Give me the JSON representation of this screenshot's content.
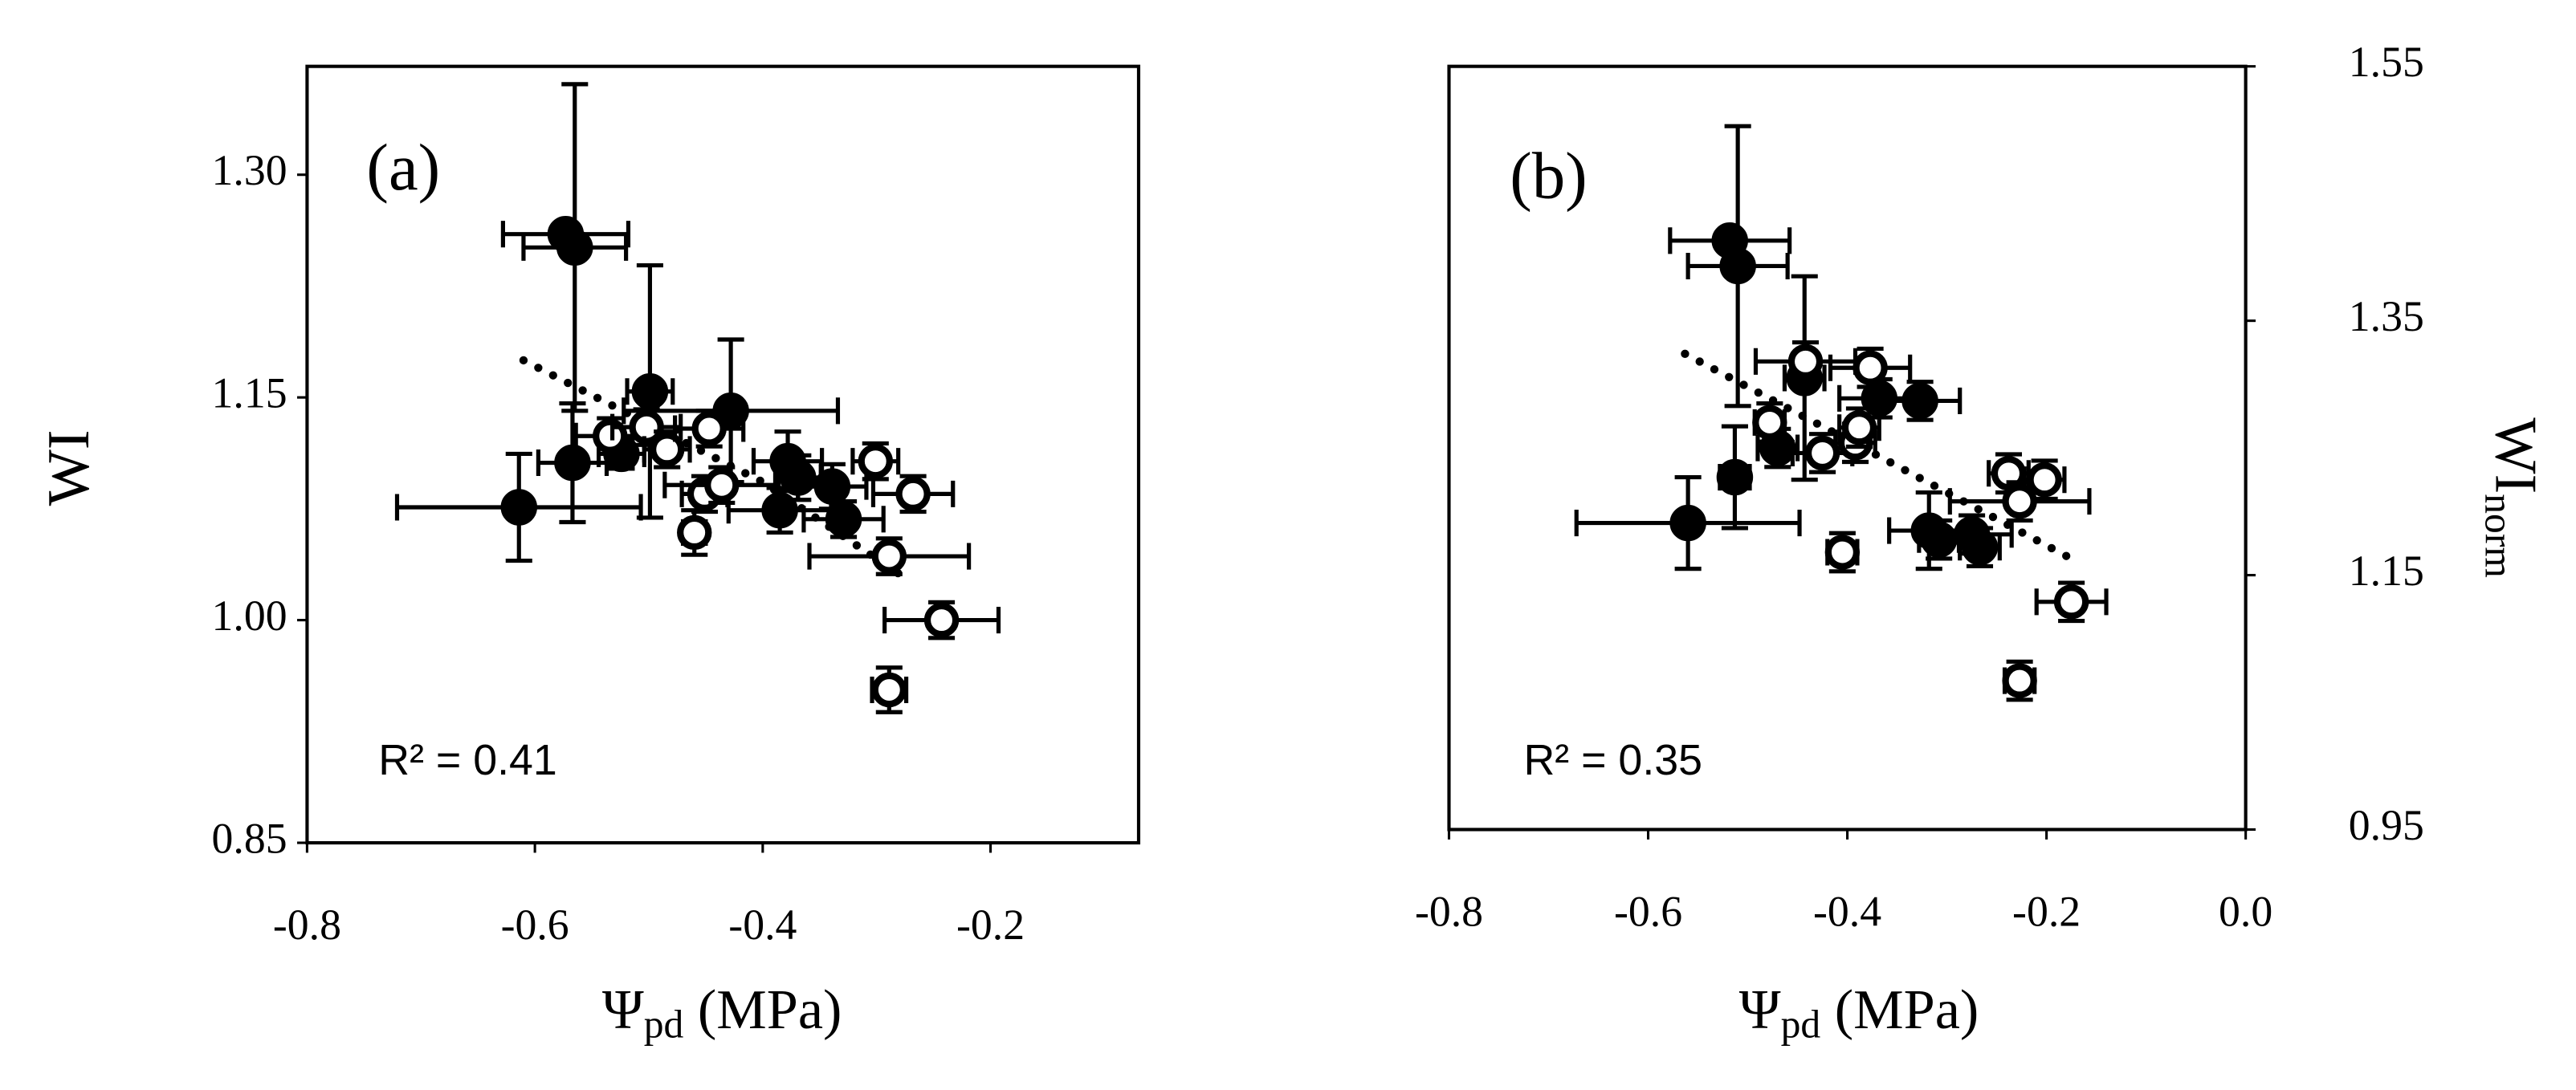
{
  "chart_data": [
    {
      "type": "scatter",
      "annotation": "(a)",
      "r2_label": "R² = 0.41",
      "x_label": "Ψ",
      "x_label_sub": "pd",
      "x_label_unit": " (MPa)",
      "y_label": "WI",
      "y_axis": "left",
      "xlim": [
        -0.8,
        -0.07
      ],
      "ylim": [
        0.85,
        1.373
      ],
      "xticks": [
        -0.8,
        -0.6,
        -0.4,
        -0.2
      ],
      "yticks": [
        0.85,
        {
          "value": 1.0,
          "label": "1.00"
        },
        1.15,
        {
          "value": 1.3,
          "label": "1.30"
        }
      ],
      "trend": {
        "x": [
          -0.61,
          -0.4,
          -0.28
        ],
        "values": [
          1.175,
          1.093,
          1.031
        ]
      },
      "series": [
        {
          "marker": "filled",
          "color": "#000000",
          "x": [
            -0.573,
            -0.565,
            -0.614,
            -0.567,
            -0.524,
            -0.499,
            -0.428,
            -0.378,
            -0.369,
            -0.385,
            -0.339,
            -0.329
          ],
          "values": [
            1.26,
            1.251,
            1.076,
            1.106,
            1.112,
            1.154,
            1.141,
            1.107,
            1.096,
            1.074,
            1.09,
            1.068
          ],
          "xerr": [
            0.055,
            0.045,
            0.107,
            0.03,
            0.02,
            0.02,
            0.094,
            0.03,
            0.02,
            0.045,
            0.03,
            0.035
          ],
          "yerr": [
            null,
            0.11,
            0.036,
            0.04,
            0.01,
            0.085,
            0.048,
            0.02,
            0.015,
            0.015,
            0.015,
            0.012
          ]
        },
        {
          "marker": "open",
          "color": "#000000",
          "x": [
            -0.534,
            -0.502,
            -0.484,
            -0.447,
            -0.451,
            -0.436,
            -0.46,
            -0.301,
            -0.268,
            -0.289,
            -0.243,
            -0.289
          ],
          "values": [
            1.124,
            1.13,
            1.115,
            1.129,
            1.085,
            1.091,
            1.059,
            1.107,
            1.085,
            1.043,
            1.0,
            0.953
          ],
          "xerr": [
            0.03,
            0.03,
            0.02,
            0.03,
            0.02,
            0.05,
            0.01,
            0.02,
            0.035,
            0.07,
            0.05,
            0.015
          ],
          "yerr": [
            0.012,
            0.012,
            0.012,
            0.012,
            0.012,
            0.012,
            0.015,
            0.012,
            0.012,
            0.012,
            0.012,
            0.015
          ]
        }
      ]
    },
    {
      "type": "scatter",
      "annotation": "(b)",
      "r2_label": "R² = 0.35",
      "x_label": "Ψ",
      "x_label_sub": "pd",
      "x_label_unit": " (MPa)",
      "y_label": "WI",
      "y_label_sub": "norm",
      "y_axis": "right",
      "xlim": [
        -0.8,
        0.0
      ],
      "ylim": [
        0.95,
        1.55
      ],
      "xticks": [
        -0.8,
        -0.6,
        -0.4,
        -0.2,
        {
          "value": 0.0,
          "label": "0.0"
        }
      ],
      "yticks": [
        0.95,
        1.15,
        1.35,
        1.55
      ],
      "trend": {
        "x": [
          -0.563,
          -0.372,
          -0.18
        ],
        "values": [
          1.324,
          1.245,
          1.165
        ]
      },
      "series": [
        {
          "marker": "filled",
          "color": "#000000",
          "x": [
            -0.518,
            -0.51,
            -0.56,
            -0.513,
            -0.47,
            -0.443,
            -0.368,
            -0.327,
            -0.318,
            -0.308,
            -0.275,
            -0.267
          ],
          "values": [
            1.413,
            1.393,
            1.191,
            1.227,
            1.25,
            1.305,
            1.289,
            1.287,
            1.185,
            1.178,
            1.182,
            1.172
          ],
          "xerr": [
            0.06,
            0.05,
            0.112,
            0.015,
            0.02,
            0.02,
            0.04,
            0.04,
            0.04,
            0.02,
            0.04,
            0.02
          ],
          "yerr": [
            null,
            0.11,
            0.036,
            0.04,
            0.015,
            0.08,
            0.015,
            0.015,
            0.03,
            0.015,
            0.015,
            0.015
          ]
        },
        {
          "marker": "open",
          "color": "#000000",
          "x": [
            -0.442,
            -0.377,
            -0.478,
            -0.425,
            -0.392,
            -0.388,
            -0.405,
            -0.238,
            -0.202,
            -0.227,
            -0.175,
            -0.227
          ],
          "values": [
            1.318,
            1.313,
            1.27,
            1.246,
            1.254,
            1.266,
            1.168,
            1.23,
            1.225,
            1.208,
            1.129,
            1.067
          ],
          "xerr": [
            0.05,
            0.04,
            0.015,
            0.03,
            0.02,
            0.02,
            0.015,
            0.02,
            0.02,
            0.07,
            0.035,
            0.015
          ],
          "yerr": [
            0.015,
            0.015,
            0.015,
            0.015,
            0.015,
            0.015,
            0.015,
            0.015,
            0.015,
            0.015,
            0.015,
            0.015
          ]
        }
      ]
    }
  ]
}
